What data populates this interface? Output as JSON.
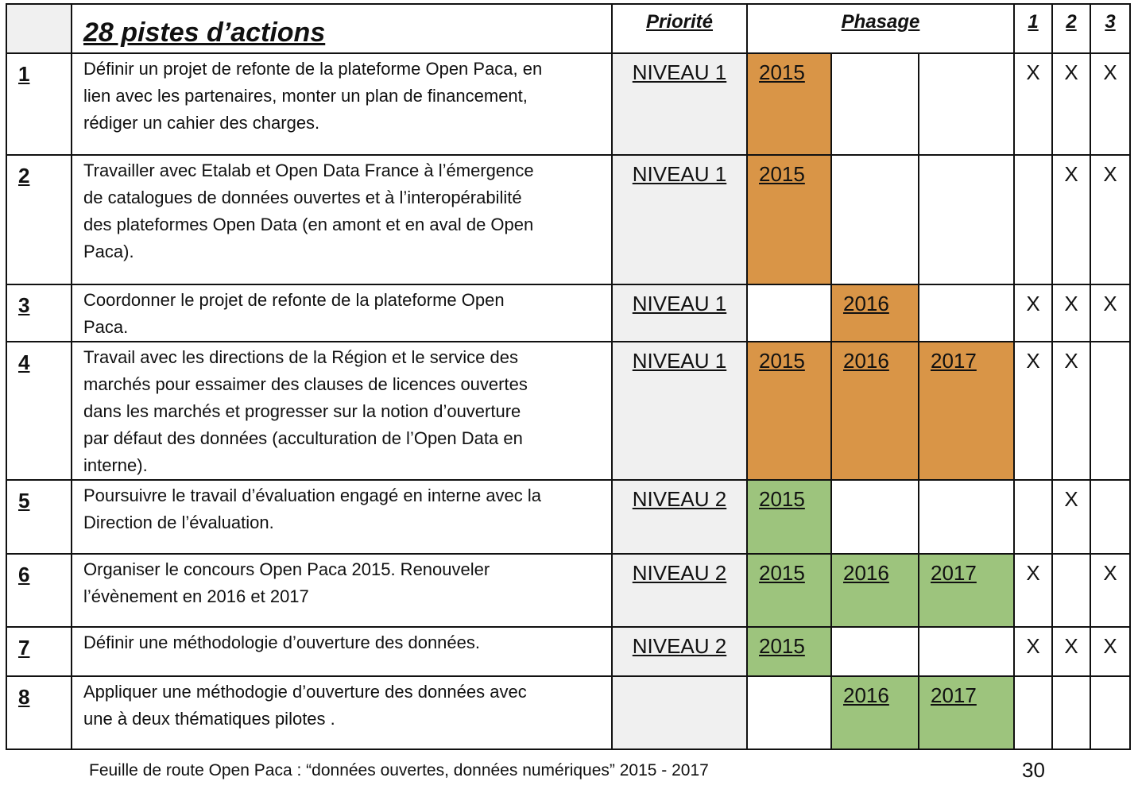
{
  "header": {
    "title": "28 pistes d’actions",
    "priority": "Priorité",
    "phasing": "Phasage",
    "col1": "1",
    "col2": "2",
    "col3": "3"
  },
  "colors": {
    "orange": "#d99547",
    "green": "#9dc47d",
    "gray": "#f0f0f0"
  },
  "rows": [
    {
      "num": "1",
      "lines": [
        "Définir un projet de refonte de la plateforme Open Paca, en",
        "lien avec les partenaires, monter un plan de financement,",
        "rédiger un cahier des charges."
      ],
      "priority": "NIVEAU 1",
      "y1": "2015",
      "y2": "",
      "y3": "",
      "x1": "X",
      "x2": "X",
      "x3": "X"
    },
    {
      "num": "2",
      "lines": [
        "Travailler avec Etalab et Open Data France à l’émergence",
        "de catalogues de données ouvertes et à l’interopérabilité",
        "des plateformes Open Data (en amont et en aval de Open",
        "Paca)."
      ],
      "priority": "NIVEAU 1",
      "y1": "2015",
      "y2": "",
      "y3": "",
      "x1": "",
      "x2": "X",
      "x3": "X"
    },
    {
      "num": "3",
      "lines": [
        "Coordonner le projet de refonte de la plateforme Open",
        "Paca."
      ],
      "priority": "NIVEAU 1",
      "y1": "",
      "y2": "2016",
      "y3": "",
      "x1": "X",
      "x2": "X",
      "x3": "X"
    },
    {
      "num": "4",
      "lines": [
        "Travail avec les directions de la Région et le service des",
        "marchés pour essaimer des clauses de licences ouvertes",
        "dans les marchés et progresser sur la notion d’ouverture",
        "par défaut des données (acculturation de l’Open Data en",
        "interne)."
      ],
      "priority": "NIVEAU 1",
      "y1": "2015",
      "y2": "2016",
      "y3": "2017",
      "x1": "X",
      "x2": "X",
      "x3": ""
    },
    {
      "num": "5",
      "lines": [
        "Poursuivre le travail d’évaluation engagé en interne avec la",
        "Direction de l’évaluation."
      ],
      "priority": "NIVEAU 2",
      "y1": "2015",
      "y2": "",
      "y3": "",
      "x1": "",
      "x2": "X",
      "x3": ""
    },
    {
      "num": "6",
      "lines": [
        "Organiser le concours Open Paca 2015. Renouveler",
        "l’évènement en 2016 et 2017"
      ],
      "priority": "NIVEAU 2",
      "y1": "2015",
      "y2": "2016",
      "y3": "2017",
      "x1": "X",
      "x2": "",
      "x3": "X"
    },
    {
      "num": "7",
      "lines": [
        "Définir une méthodologie d’ouverture des données."
      ],
      "priority": "NIVEAU 2",
      "y1": "2015",
      "y2": "",
      "y3": "",
      "x1": "X",
      "x2": "X",
      "x3": "X"
    },
    {
      "num": "8",
      "lines": [
        "Appliquer une méthodogie d’ouverture des données avec",
        "une à deux thématiques pilotes ."
      ],
      "priority": "",
      "y1": "",
      "y2": "2016",
      "y3": "2017",
      "x1": "",
      "x2": "",
      "x3": ""
    }
  ],
  "footer": {
    "text": "Feuille de route Open Paca : “données ouvertes, données numériques” 2015 - 2017",
    "page": "30"
  }
}
